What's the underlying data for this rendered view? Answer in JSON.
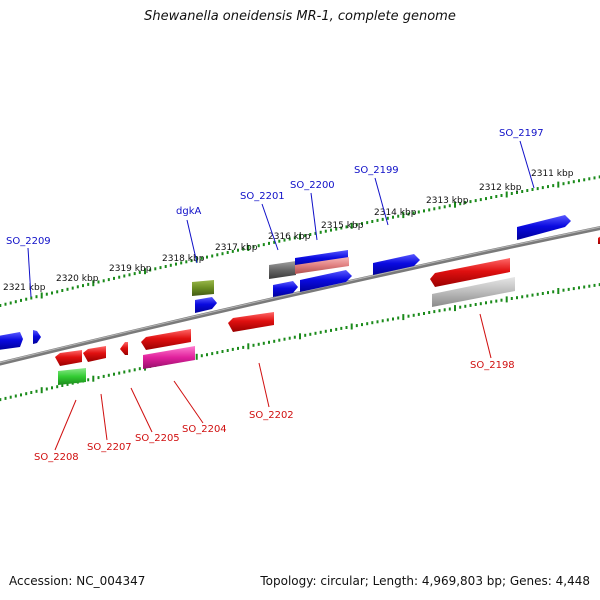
{
  "title": "Shewanella oneidensis MR-1, complete genome",
  "footer": {
    "accession": "Accession: NC_004347",
    "topology": "Topology: circular; Length: 4,969,803 bp; Genes: 4,448"
  },
  "kbp_labels": [
    "2321 kbp",
    "2320 kbp",
    "2319 kbp",
    "2318 kbp",
    "2317 kbp",
    "2316 kbp",
    "2315 kbp",
    "2314 kbp",
    "2313 kbp",
    "2312 kbp",
    "2311 kbp"
  ],
  "gene_labels_forward": [
    "SO_2209",
    "dgkA",
    "SO_2201",
    "SO_2200",
    "SO_2199",
    "SO_2197"
  ],
  "gene_labels_reverse": [
    "SO_2208",
    "SO_2207",
    "SO_2205",
    "SO_2204",
    "SO_2202",
    "SO_2198"
  ],
  "colors": {
    "forward_label": "#1010c8",
    "reverse_label": "#d01010",
    "forward_gene": "#0a0ae0",
    "reverse_gene": "#e01010",
    "backbone": "#808080",
    "ticks": "#1a8a1a",
    "olive_gene": "#6b8e23",
    "green_gene": "#33cc33",
    "magenta_gene": "#e0209c",
    "gray_gene": "#666666",
    "pink_gene": "#e08080",
    "lightgray_gene": "#bbbbbb"
  }
}
